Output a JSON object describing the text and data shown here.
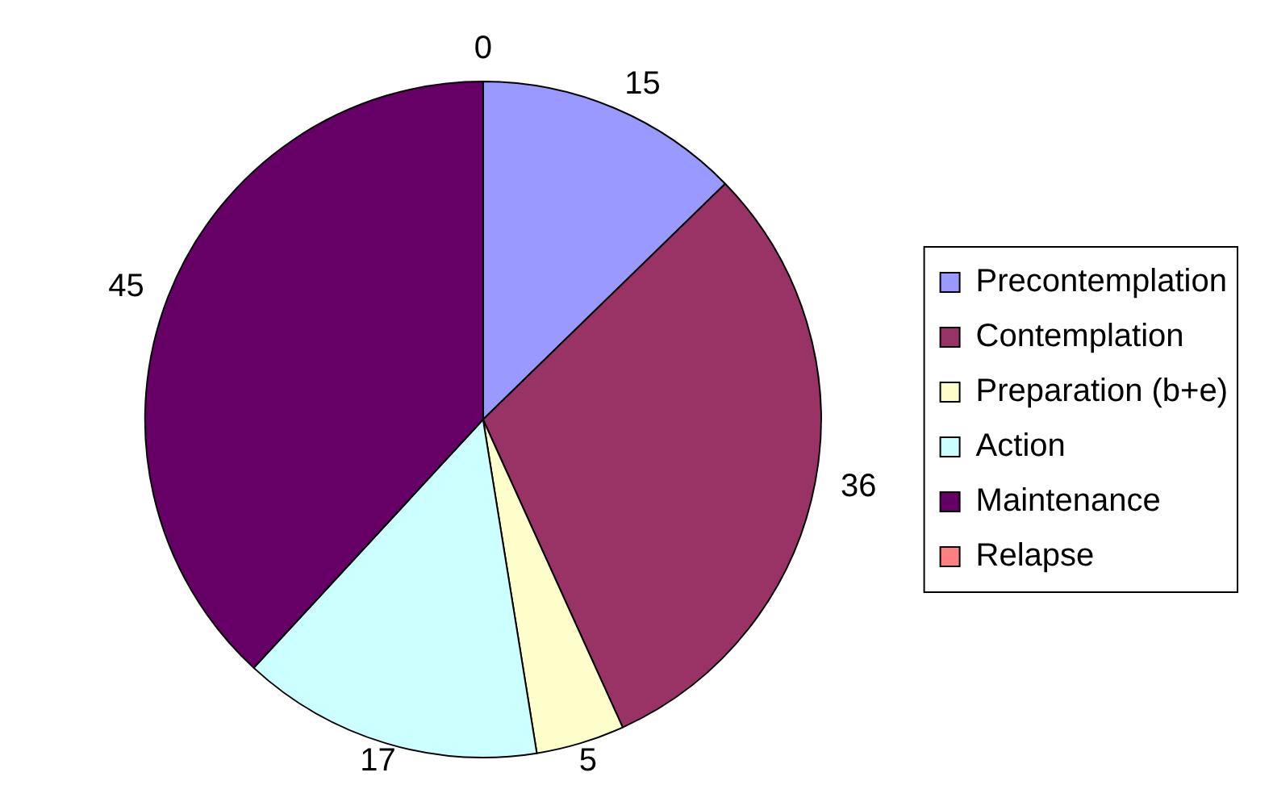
{
  "chart_data": {
    "type": "pie",
    "categories": [
      "Precontemplation",
      "Contemplation",
      "Preparation (b+e)",
      "Action",
      "Maintenance",
      "Relapse"
    ],
    "values": [
      15,
      36,
      5,
      17,
      45,
      0
    ],
    "colors": [
      "#9999ff",
      "#993366",
      "#ffffcc",
      "#ccffff",
      "#660066",
      "#ff8080"
    ],
    "value_labels": [
      "15",
      "36",
      "5",
      "17",
      "45",
      "0"
    ],
    "legend": "right"
  }
}
